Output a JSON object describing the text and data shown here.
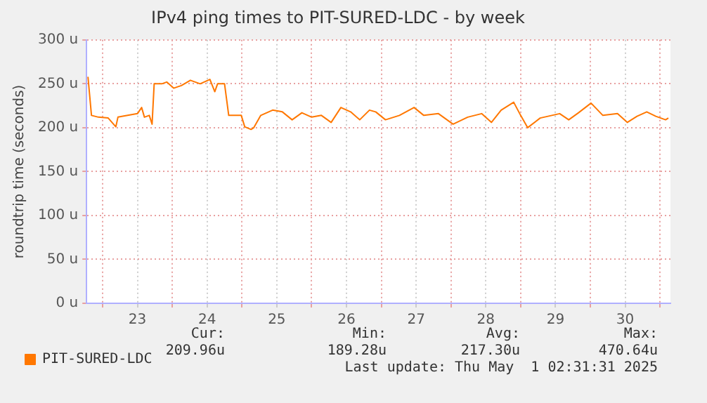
{
  "chart_data": {
    "type": "line",
    "title": "IPv4 ping times to PIT-SURED-LDC - by week",
    "ylabel": "roundtrip time (seconds)",
    "series": [
      {
        "name": "PIT-SURED-LDC",
        "color": "#ff7700",
        "x": [
          22.79,
          22.84,
          22.94,
          23.08,
          23.19,
          23.22,
          23.36,
          23.5,
          23.56,
          23.6,
          23.67,
          23.71,
          23.74,
          23.85,
          23.92,
          24.02,
          24.13,
          24.26,
          24.4,
          24.54,
          24.61,
          24.65,
          24.75,
          24.81,
          24.99,
          25.04,
          25.13,
          25.17,
          25.27,
          25.44,
          25.58,
          25.72,
          25.86,
          26.0,
          26.14,
          26.28,
          26.42,
          26.56,
          26.69,
          26.83,
          26.92,
          27.06,
          27.26,
          27.47,
          27.61,
          27.82,
          28.03,
          28.24,
          28.44,
          28.58,
          28.72,
          28.9,
          29.0,
          29.1,
          29.28,
          29.56,
          29.69,
          29.83,
          30.01,
          30.18,
          30.39,
          30.53,
          30.67,
          30.81,
          30.94,
          31.08,
          31.12
        ],
        "values": [
          258,
          214,
          212,
          211,
          201,
          212,
          214,
          216,
          223,
          212,
          214,
          204,
          250,
          250,
          252,
          245,
          248,
          254,
          250,
          255,
          241,
          250,
          250,
          214,
          214,
          201,
          198,
          200,
          214,
          220,
          218,
          209,
          217,
          212,
          214,
          206,
          223,
          218,
          209,
          220,
          218,
          209,
          214,
          223,
          214,
          216,
          204,
          212,
          216,
          206,
          220,
          229,
          214,
          200,
          211,
          216,
          209,
          217,
          228,
          214,
          216,
          206,
          213,
          218,
          213,
          209,
          211
        ]
      }
    ],
    "xlim": [
      22.77,
      31.15
    ],
    "xticks": [
      {
        "value": 23,
        "label": null
      },
      {
        "value": 23.5,
        "label": "23"
      },
      {
        "value": 24,
        "label": null
      },
      {
        "value": 24.5,
        "label": "24"
      },
      {
        "value": 25,
        "label": null
      },
      {
        "value": 25.5,
        "label": "25"
      },
      {
        "value": 26,
        "label": null
      },
      {
        "value": 26.5,
        "label": "26"
      },
      {
        "value": 27,
        "label": null
      },
      {
        "value": 27.5,
        "label": "27"
      },
      {
        "value": 28,
        "label": null
      },
      {
        "value": 28.5,
        "label": "28"
      },
      {
        "value": 29,
        "label": null
      },
      {
        "value": 29.5,
        "label": "29"
      },
      {
        "value": 30,
        "label": null
      },
      {
        "value": 30.5,
        "label": "30"
      },
      {
        "value": 31,
        "label": null
      }
    ],
    "ylim": [
      0,
      300
    ],
    "yticks": [
      {
        "value": 0,
        "label": "0 u"
      },
      {
        "value": 50,
        "label": "50 u"
      },
      {
        "value": 100,
        "label": "100 u"
      },
      {
        "value": 150,
        "label": "150 u"
      },
      {
        "value": 200,
        "label": "200 u"
      },
      {
        "value": 250,
        "label": "250 u"
      },
      {
        "value": 300,
        "label": "300 u"
      }
    ],
    "grid": true,
    "legend": "bottom left",
    "marker": "none",
    "line_style": "solid",
    "annotations": [
      "Cur:",
      "Min:",
      "Avg:",
      "Max:",
      "209.96u",
      "189.28u",
      "217.30u",
      "470.64u",
      "Last update: Thu May  1 02:31:31 2025"
    ]
  }
}
